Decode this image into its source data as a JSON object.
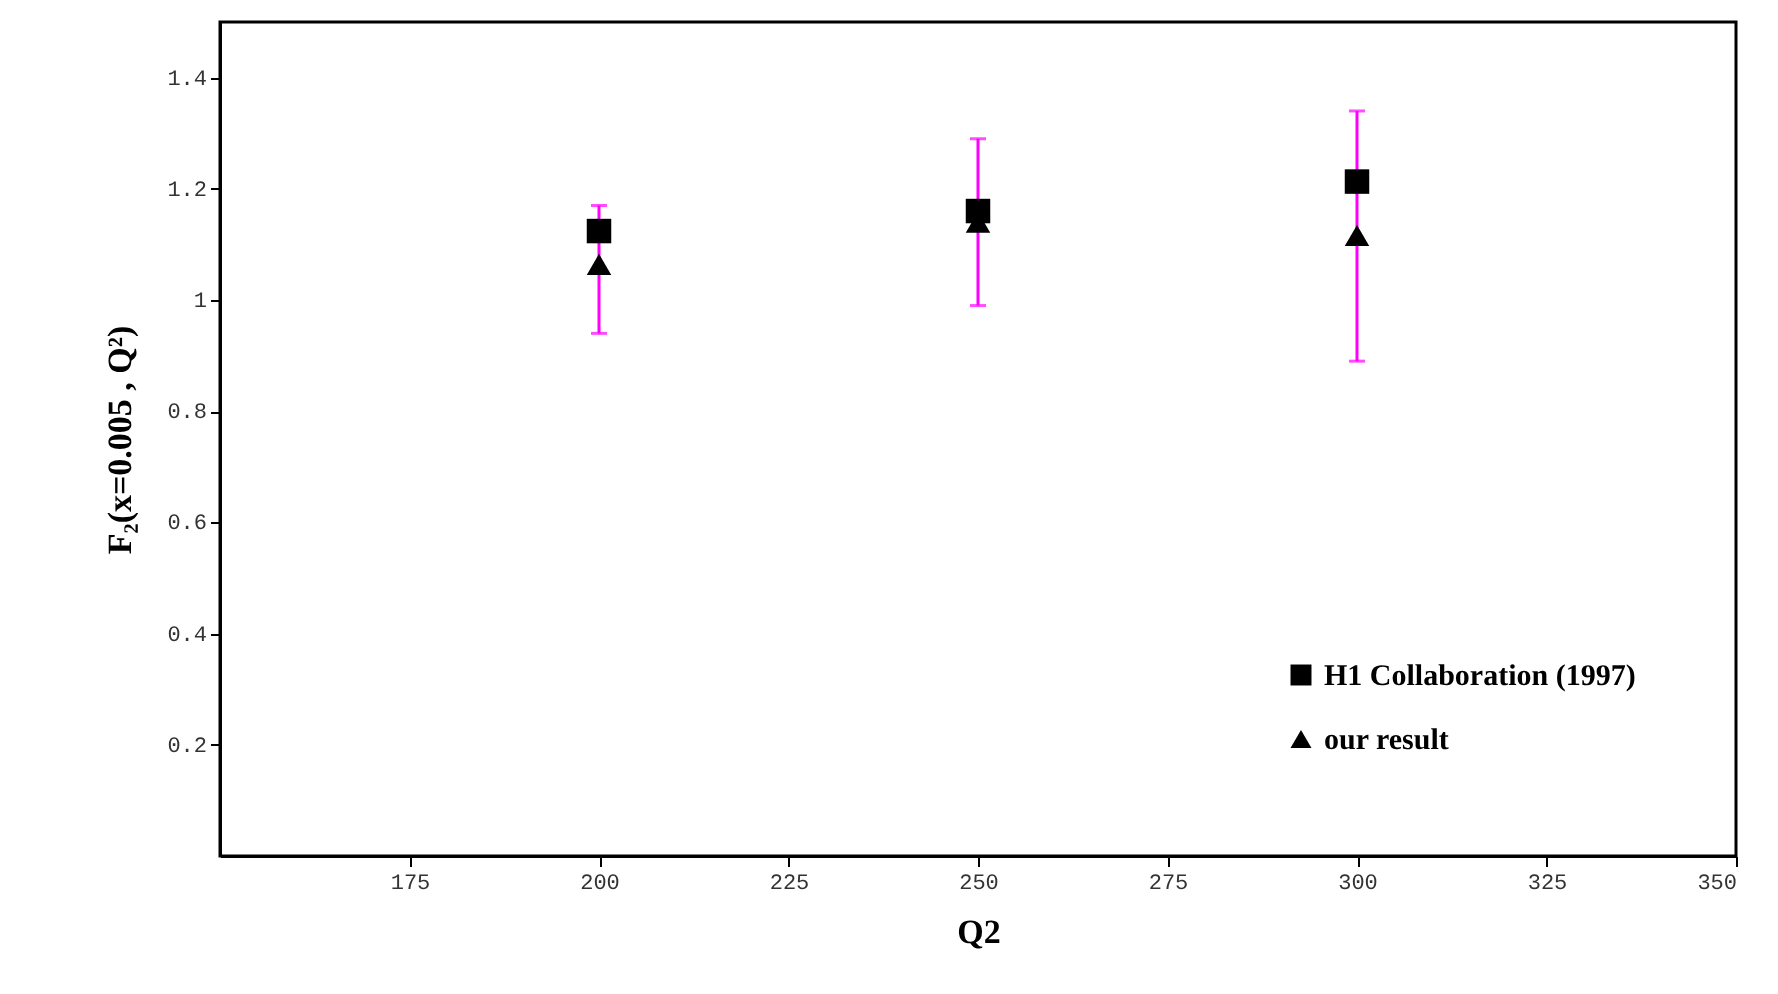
{
  "chart_data": {
    "type": "scatter",
    "xlabel": "Q2",
    "ylabel": "F₂(x=0.005 , Q²)",
    "x": [
      200,
      250,
      300
    ],
    "series": [
      {
        "name": "H1 Collaboration (1997)",
        "color": "#000000",
        "marker": "square",
        "values": [
          1.124,
          1.16,
          1.213
        ],
        "errors": [
          [
            0.94,
            1.17
          ],
          [
            0.99,
            1.29
          ],
          [
            0.89,
            1.34
          ]
        ]
      },
      {
        "name": "our result",
        "color": "#000000",
        "marker": "triangle",
        "values": [
          1.064,
          1.14,
          1.116
        ]
      }
    ],
    "xlim": [
      150,
      350
    ],
    "xticks": [
      175,
      200,
      225,
      250,
      275,
      300,
      325,
      350
    ],
    "ylim": [
      0,
      1.5
    ],
    "yticks": [
      0.2,
      0.4,
      0.6,
      0.8,
      {
        "value": 1,
        "label": "1"
      },
      1.2,
      1.4
    ],
    "grid": false,
    "legend": "bottom right"
  }
}
